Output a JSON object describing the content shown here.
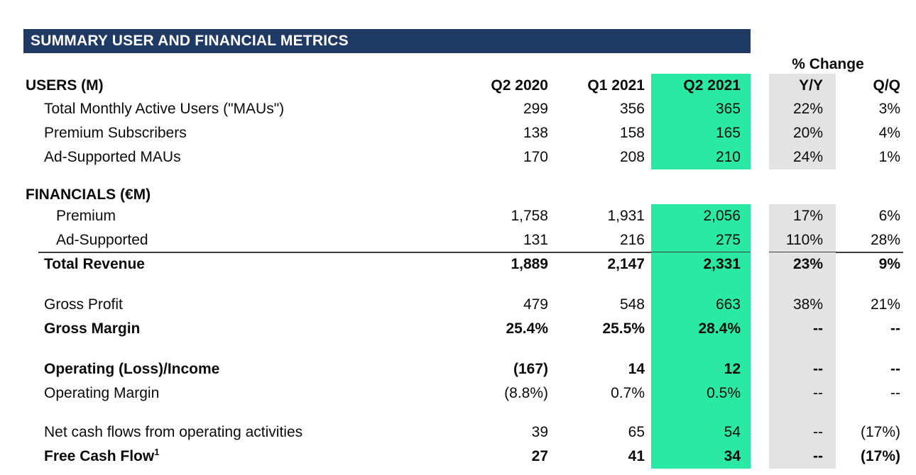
{
  "title": "SUMMARY USER AND FINANCIAL METRICS",
  "change_header": "% Change",
  "colors": {
    "title_bar_navy": "#1f3a64",
    "highlight_green": "#29e9a4",
    "highlight_gray": "#e3e3e3",
    "rule_dark": "#3d3d3d",
    "text": "#0b0b0b",
    "title_text": "#ffffff"
  },
  "table": {
    "header_row": {
      "label": "USERS (M)",
      "cols": [
        "Q2 2020",
        "Q1 2021",
        "Q2 2021",
        "Y/Y",
        "Q/Q"
      ]
    },
    "rows": [
      {
        "label": "Total Monthly Active Users (\"MAUs\")",
        "values": [
          "299",
          "356",
          "365",
          "22%",
          "3%"
        ],
        "indent": 1,
        "bold": false,
        "band": true
      },
      {
        "label": "Premium Subscribers",
        "values": [
          "138",
          "158",
          "165",
          "20%",
          "4%"
        ],
        "indent": 1,
        "bold": false,
        "band": true
      },
      {
        "label": "Ad-Supported MAUs",
        "values": [
          "170",
          "208",
          "210",
          "24%",
          "1%"
        ],
        "indent": 1,
        "bold": false,
        "band": true
      },
      {
        "spacer": true,
        "h": 19,
        "band": false
      },
      {
        "label": "FINANCIALS (€M)",
        "values": [
          "",
          "",
          "",
          "",
          ""
        ],
        "indent": 0,
        "bold": true,
        "band": false,
        "h": 30
      },
      {
        "label": "Premium",
        "values": [
          "1,758",
          "1,931",
          "2,056",
          "17%",
          "6%"
        ],
        "indent": 2,
        "bold": false,
        "band": true
      },
      {
        "label": "Ad-Supported",
        "values": [
          "131",
          "216",
          "275",
          "110%",
          "28%"
        ],
        "indent": 2,
        "bold": false,
        "band": true,
        "rule_below": true
      },
      {
        "label": "Total Revenue",
        "values": [
          "1,889",
          "2,147",
          "2,331",
          "23%",
          "9%"
        ],
        "indent": 1,
        "bold": true,
        "band": true
      },
      {
        "spacer": true,
        "h": 23,
        "band": true
      },
      {
        "label": "Gross Profit",
        "values": [
          "479",
          "548",
          "663",
          "38%",
          "21%"
        ],
        "indent": 1,
        "bold": false,
        "band": true
      },
      {
        "label": "Gross Margin",
        "values": [
          "25.4%",
          "25.5%",
          "28.4%",
          "--",
          "--"
        ],
        "indent": 1,
        "bold": true,
        "band": true
      },
      {
        "spacer": true,
        "h": 23,
        "band": true
      },
      {
        "label": "Operating (Loss)/Income",
        "values": [
          "(167)",
          "14",
          "12",
          "--",
          "--"
        ],
        "indent": 1,
        "bold": true,
        "band": true
      },
      {
        "label": "Operating Margin",
        "values": [
          "(8.8%)",
          "0.7%",
          "0.5%",
          "--",
          "--"
        ],
        "indent": 1,
        "bold": false,
        "band": true
      },
      {
        "spacer": true,
        "h": 21,
        "band": true
      },
      {
        "label": "Net cash flows from operating activities",
        "values": [
          "39",
          "65",
          "54",
          "--",
          "(17%)"
        ],
        "indent": 1,
        "bold": false,
        "band": true
      },
      {
        "label": "Free Cash Flow",
        "label_sup": "1",
        "values": [
          "27",
          "41",
          "34",
          "--",
          "(17%)"
        ],
        "indent": 1,
        "bold": true,
        "band": true
      }
    ]
  }
}
